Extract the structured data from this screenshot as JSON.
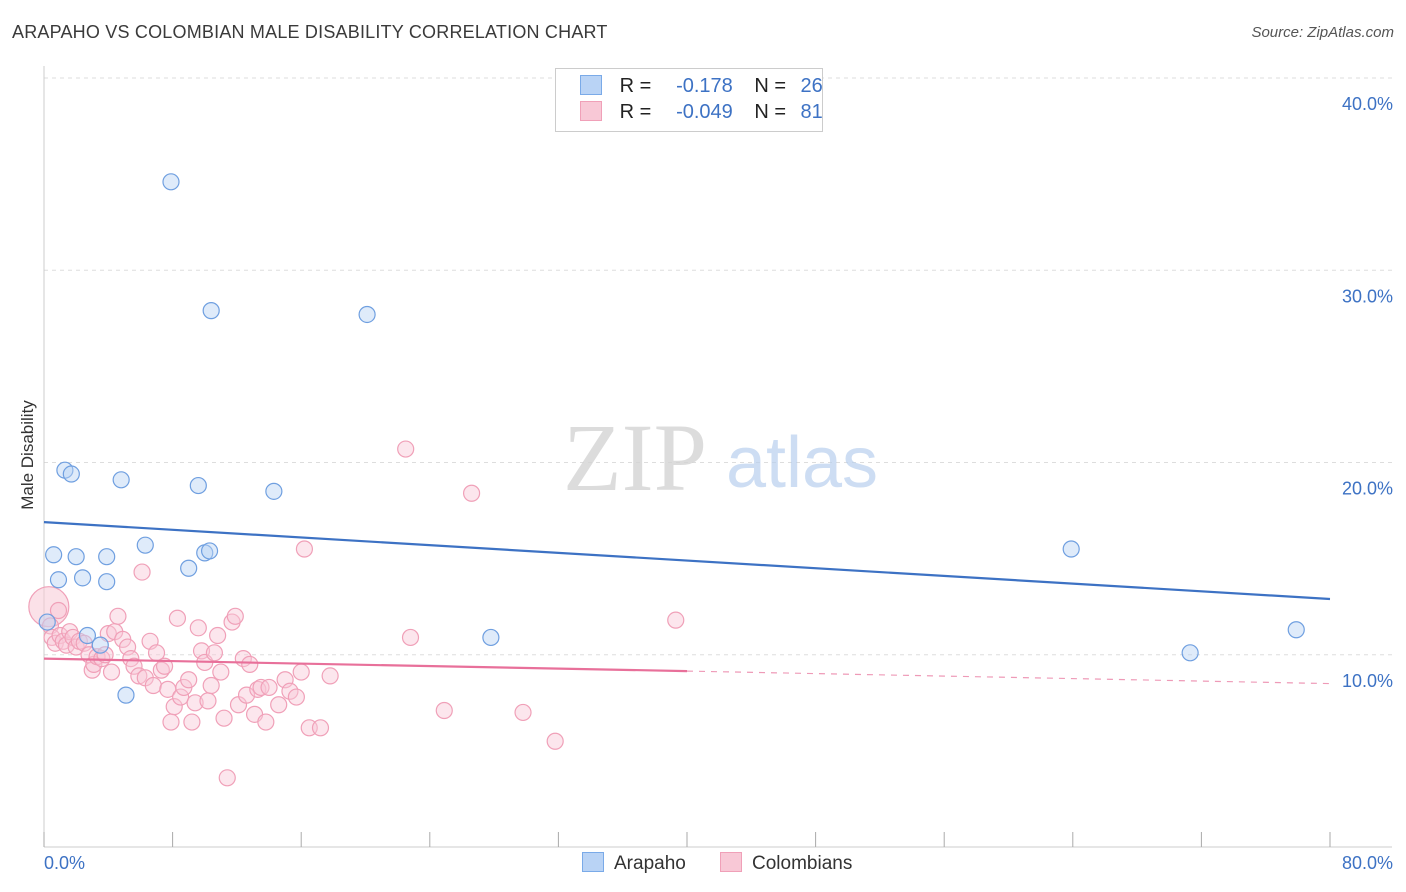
{
  "header": {
    "title": "ARAPAHO VS COLOMBIAN MALE DISABILITY CORRELATION CHART",
    "source": "Source: ZipAtlas.com"
  },
  "watermark": {
    "zip": "ZIP",
    "atlas": "atlas"
  },
  "legend": {
    "rows": [
      {
        "r_label": "R =",
        "r_value": "-0.178",
        "n_label": "N =",
        "n_value": "26",
        "color": "#7aaae8",
        "fill": "#b9d3f5"
      },
      {
        "r_label": "R =",
        "r_value": "-0.049",
        "n_label": "N =",
        "n_value": "81",
        "color": "#f0a0b8",
        "fill": "#f8c8d6"
      }
    ]
  },
  "bottom_legend": {
    "arapaho": "Arapaho",
    "colombians": "Colombians"
  },
  "chart_data": {
    "type": "scatter",
    "title": "ARAPAHO VS COLOMBIAN MALE DISABILITY CORRELATION CHART",
    "xlabel": "",
    "ylabel": "Male Disability",
    "xlim": [
      0,
      80
    ],
    "ylim": [
      0,
      40
    ],
    "x_tick_labels": {
      "min": "0.0%",
      "max": "80.0%"
    },
    "y_ticks": [
      10,
      20,
      30,
      40
    ],
    "y_tick_labels": [
      "10.0%",
      "20.0%",
      "30.0%",
      "40.0%"
    ],
    "grid": "horizontal dashed",
    "legend_position": "top-center",
    "series": [
      {
        "name": "Arapaho",
        "color": "#3d72c4",
        "fill": "#b9d3f5",
        "stroke": "#6f9fe0",
        "trend": {
          "x0": 0,
          "y0": 16.9,
          "x1": 80,
          "y1": 12.9,
          "solid_until": 80
        },
        "points": [
          [
            7.9,
            34.6
          ],
          [
            10.4,
            27.9
          ],
          [
            20.1,
            27.7
          ],
          [
            1.3,
            19.6
          ],
          [
            1.7,
            19.4
          ],
          [
            4.8,
            19.1
          ],
          [
            9.6,
            18.8
          ],
          [
            14.3,
            18.5
          ],
          [
            0.6,
            15.2
          ],
          [
            2.0,
            15.1
          ],
          [
            3.9,
            15.1
          ],
          [
            6.3,
            15.7
          ],
          [
            10.0,
            15.3
          ],
          [
            10.3,
            15.4
          ],
          [
            9.0,
            14.5
          ],
          [
            0.9,
            13.9
          ],
          [
            2.4,
            14.0
          ],
          [
            3.9,
            13.8
          ],
          [
            0.2,
            11.7
          ],
          [
            2.7,
            11.0
          ],
          [
            3.5,
            10.5
          ],
          [
            27.8,
            10.9
          ],
          [
            5.1,
            7.9
          ],
          [
            63.9,
            15.5
          ],
          [
            71.3,
            10.1
          ],
          [
            77.9,
            11.3
          ]
        ]
      },
      {
        "name": "Colombians",
        "color": "#e8709a",
        "fill": "#f8c8d6",
        "stroke": "#f0a0b8",
        "trend": {
          "x0": 0,
          "y0": 9.8,
          "x1": 80,
          "y1": 8.5,
          "solid_until": 40
        },
        "points": [
          [
            0.3,
            12.5
          ],
          [
            0.4,
            11.5
          ],
          [
            0.5,
            10.9
          ],
          [
            0.7,
            10.6
          ],
          [
            1.0,
            11.0
          ],
          [
            1.2,
            10.7
          ],
          [
            1.4,
            10.5
          ],
          [
            1.6,
            11.2
          ],
          [
            1.8,
            10.9
          ],
          [
            2.0,
            10.4
          ],
          [
            2.2,
            10.7
          ],
          [
            2.5,
            10.6
          ],
          [
            2.8,
            10.0
          ],
          [
            3.0,
            9.2
          ],
          [
            3.1,
            9.5
          ],
          [
            3.3,
            9.9
          ],
          [
            3.6,
            9.8
          ],
          [
            3.8,
            10.0
          ],
          [
            4.0,
            11.1
          ],
          [
            4.2,
            9.1
          ],
          [
            4.4,
            11.2
          ],
          [
            4.6,
            12.0
          ],
          [
            4.9,
            10.8
          ],
          [
            5.2,
            10.4
          ],
          [
            5.4,
            9.8
          ],
          [
            5.6,
            9.4
          ],
          [
            5.9,
            8.9
          ],
          [
            6.1,
            14.3
          ],
          [
            6.3,
            8.8
          ],
          [
            6.6,
            10.7
          ],
          [
            6.8,
            8.4
          ],
          [
            7.0,
            10.1
          ],
          [
            7.3,
            9.2
          ],
          [
            7.5,
            9.4
          ],
          [
            7.7,
            8.2
          ],
          [
            7.9,
            6.5
          ],
          [
            8.1,
            7.3
          ],
          [
            8.3,
            11.9
          ],
          [
            8.5,
            7.8
          ],
          [
            8.7,
            8.3
          ],
          [
            9.0,
            8.7
          ],
          [
            9.2,
            6.5
          ],
          [
            9.4,
            7.5
          ],
          [
            9.6,
            11.4
          ],
          [
            9.8,
            10.2
          ],
          [
            10.0,
            9.6
          ],
          [
            10.2,
            7.6
          ],
          [
            10.4,
            8.4
          ],
          [
            10.6,
            10.1
          ],
          [
            10.8,
            11.0
          ],
          [
            11.0,
            9.1
          ],
          [
            11.2,
            6.7
          ],
          [
            11.4,
            3.6
          ],
          [
            11.7,
            11.7
          ],
          [
            11.9,
            12.0
          ],
          [
            12.1,
            7.4
          ],
          [
            12.4,
            9.8
          ],
          [
            12.6,
            7.9
          ],
          [
            12.8,
            9.5
          ],
          [
            13.1,
            6.9
          ],
          [
            13.3,
            8.2
          ],
          [
            13.5,
            8.3
          ],
          [
            13.8,
            6.5
          ],
          [
            14.0,
            8.3
          ],
          [
            14.6,
            7.4
          ],
          [
            15.0,
            8.7
          ],
          [
            15.3,
            8.1
          ],
          [
            15.7,
            7.8
          ],
          [
            16.0,
            9.1
          ],
          [
            16.2,
            15.5
          ],
          [
            16.5,
            6.2
          ],
          [
            17.2,
            6.2
          ],
          [
            17.8,
            8.9
          ],
          [
            22.5,
            20.7
          ],
          [
            22.8,
            10.9
          ],
          [
            24.9,
            7.1
          ],
          [
            26.6,
            18.4
          ],
          [
            29.8,
            7.0
          ],
          [
            31.8,
            5.5
          ],
          [
            39.3,
            11.8
          ],
          [
            0.9,
            12.3
          ]
        ]
      }
    ]
  }
}
